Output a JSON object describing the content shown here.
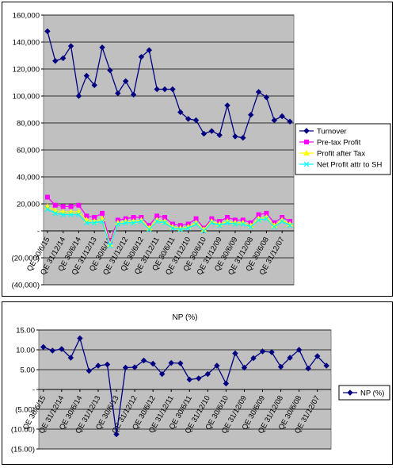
{
  "chart_data": [
    {
      "type": "line",
      "title": "",
      "xlabel": "",
      "ylabel": "",
      "ylim": [
        -40000,
        160000
      ],
      "yticks": [
        -40000,
        -20000,
        0,
        20000,
        40000,
        60000,
        80000,
        100000,
        120000,
        140000,
        160000
      ],
      "ytick_labels": [
        "(40,000)",
        "(20,000)",
        "-",
        "20,000",
        "40,000",
        "60,000",
        "80,000",
        "100,000",
        "120,000",
        "140,000",
        "160,000"
      ],
      "tick_labels": [
        "QE 30/6/15",
        "QE 31/12/14",
        "QE 30/6/14",
        "QE 31/12/13",
        "QE 30/6/13",
        "QE 31/12/12",
        "QE 30/6/12",
        "QE 31/12/11",
        "QE 30/6/11",
        "QE 31/12/10",
        "QE 30/6/10",
        "QE 31/12/09",
        "QE 30/6/09",
        "QE 31/12/08",
        "QE 30/6/08",
        "QE 31/12/07"
      ],
      "plot_bg": "#c0c0c0",
      "grid": true,
      "legend_position": "right",
      "series": [
        {
          "name": "Turnover",
          "color": "#000080",
          "marker": "diamond",
          "values": [
            148000,
            126000,
            128000,
            137000,
            100000,
            115000,
            108000,
            136000,
            119000,
            102000,
            111000,
            101000,
            129000,
            134000,
            105000,
            105000,
            105000,
            88000,
            83000,
            82000,
            72000,
            74000,
            71000,
            93000,
            70000,
            69000,
            86000,
            103000,
            99000,
            82000,
            85000,
            81000
          ]
        },
        {
          "name": "Pre-tax Profit",
          "color": "#ff00ff",
          "marker": "square",
          "values": [
            25000,
            19000,
            18000,
            18000,
            19000,
            11000,
            10000,
            13000,
            -8000,
            8000,
            9000,
            10000,
            10000,
            4000,
            11000,
            10000,
            5000,
            4000,
            5000,
            9000,
            2000,
            9000,
            7000,
            10000,
            8000,
            8000,
            6000,
            12000,
            13000,
            6000,
            10000,
            7000
          ]
        },
        {
          "name": "Profit after Tax",
          "color": "#ffff00",
          "marker": "triangle",
          "values": [
            18000,
            15000,
            14000,
            14000,
            14000,
            8000,
            7000,
            9000,
            -10000,
            6000,
            7000,
            7000,
            8000,
            2000,
            8000,
            7000,
            3000,
            2000,
            3000,
            6000,
            1000,
            7000,
            5000,
            7000,
            6000,
            6000,
            4000,
            9000,
            10000,
            4000,
            8000,
            5000
          ]
        },
        {
          "name": "Net Profit attr to SH",
          "color": "#00ffff",
          "marker": "x",
          "values": [
            16000,
            13000,
            12000,
            12000,
            12000,
            6000,
            6000,
            7000,
            -11000,
            5000,
            6000,
            6000,
            7000,
            1000,
            7000,
            6000,
            2000,
            1000,
            2000,
            5000,
            0,
            6000,
            4000,
            6000,
            5000,
            5000,
            3000,
            8000,
            9000,
            3000,
            7000,
            4000
          ]
        }
      ]
    },
    {
      "type": "line",
      "title": "NP (%)",
      "xlabel": "",
      "ylabel": "",
      "ylim": [
        -15,
        15
      ],
      "yticks": [
        -15,
        -10,
        -5,
        0,
        5,
        10,
        15
      ],
      "ytick_labels": [
        "(15.00)",
        "(10.00)",
        "(5.00)",
        "-",
        "5.00",
        "10.00",
        "15.00"
      ],
      "tick_labels": [
        "QE 30/6/15",
        "QE 31/12/14",
        "QE 30/6/14",
        "QE 31/12/13",
        "QE 30/6/13",
        "QE 31/12/12",
        "QE 30/6/12",
        "QE 31/12/11",
        "QE 30/6/11",
        "QE 31/12/10",
        "QE 30/6/10",
        "QE 31/12/09",
        "QE 30/6/09",
        "QE 31/12/08",
        "QE 30/6/08",
        "QE 31/12/07"
      ],
      "plot_bg": "#c0c0c0",
      "grid": true,
      "legend_position": "right",
      "series": [
        {
          "name": "NP (%)",
          "color": "#000080",
          "marker": "diamond",
          "values": [
            10.7,
            9.8,
            10.2,
            8.0,
            12.9,
            4.7,
            6.0,
            6.3,
            -11.3,
            5.5,
            5.6,
            7.3,
            6.5,
            3.9,
            6.7,
            6.6,
            2.5,
            2.8,
            3.9,
            6.0,
            1.5,
            9.1,
            5.5,
            7.9,
            9.6,
            9.4,
            5.7,
            8.0,
            10.0,
            5.3,
            8.4,
            6.0
          ]
        }
      ]
    }
  ]
}
